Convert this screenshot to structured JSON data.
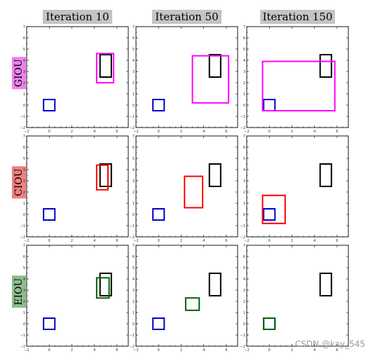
{
  "chart_data": {
    "type": "diagram-grid",
    "column_titles": [
      "Iteration 10",
      "Iteration 50",
      "Iteration 150"
    ],
    "row_labels": [
      {
        "text": "GIOU",
        "color": "#ee82ee"
      },
      {
        "text": "CIOU",
        "color": "#f08080"
      },
      {
        "text": "EIOU",
        "color": "#8fbc8f"
      }
    ],
    "axes": {
      "xlim": [
        -2,
        7
      ],
      "ylim": [
        -2,
        7
      ],
      "xticks": [
        -2,
        0,
        2,
        4,
        6
      ],
      "yticks": [
        -2,
        -1,
        0,
        1,
        2,
        3,
        4,
        5,
        6,
        7
      ]
    },
    "colors": {
      "target": "#000000",
      "anchor": "#0000cc",
      "GIOU": "#ff00ff",
      "CIOU": "#ff0000",
      "EIOU": "#006400"
    },
    "target_box": {
      "x1": 4.5,
      "y1": 2.5,
      "x2": 5.5,
      "y2": 4.5
    },
    "anchor_box": {
      "x1": -0.5,
      "y1": -0.5,
      "x2": 0.5,
      "y2": 0.5
    },
    "panels": [
      {
        "row": 0,
        "col": 0,
        "pred": {
          "x1": 4.2,
          "y1": 2.0,
          "x2": 5.7,
          "y2": 4.6
        }
      },
      {
        "row": 0,
        "col": 1,
        "pred": {
          "x1": 3.0,
          "y1": 0.2,
          "x2": 6.2,
          "y2": 4.4
        }
      },
      {
        "row": 0,
        "col": 2,
        "pred": {
          "x1": -0.6,
          "y1": -0.5,
          "x2": 5.8,
          "y2": 3.9
        }
      },
      {
        "row": 1,
        "col": 0,
        "pred": {
          "x1": 4.2,
          "y1": 2.2,
          "x2": 5.2,
          "y2": 4.4
        }
      },
      {
        "row": 1,
        "col": 1,
        "pred": {
          "x1": 2.3,
          "y1": 0.6,
          "x2": 3.9,
          "y2": 3.4
        }
      },
      {
        "row": 1,
        "col": 2,
        "pred": {
          "x1": -0.6,
          "y1": -0.8,
          "x2": 1.4,
          "y2": 1.7
        }
      },
      {
        "row": 2,
        "col": 0,
        "pred": {
          "x1": 4.2,
          "y1": 2.3,
          "x2": 5.3,
          "y2": 4.1
        }
      },
      {
        "row": 2,
        "col": 1,
        "pred": {
          "x1": 2.4,
          "y1": 1.2,
          "x2": 3.6,
          "y2": 2.3
        }
      },
      {
        "row": 2,
        "col": 2,
        "pred": {
          "x1": -0.5,
          "y1": -0.5,
          "x2": 0.5,
          "y2": 0.5
        }
      }
    ]
  },
  "watermark": "CSDN @kay_545"
}
